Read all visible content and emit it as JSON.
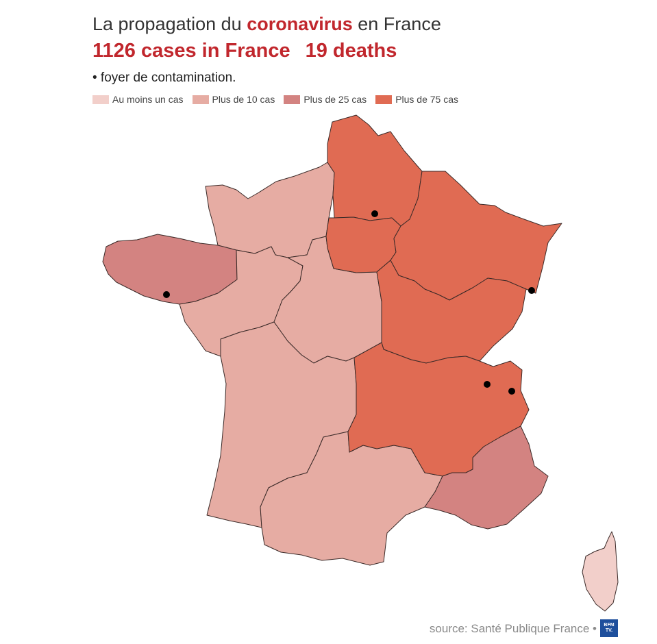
{
  "title": {
    "prefix": "La propagation du ",
    "highlight": "coronavirus",
    "suffix": " en France"
  },
  "headline": {
    "cases": "1126 cases in France",
    "deaths": "19 deaths"
  },
  "foyer_note": "• foyer de contamination.",
  "legend": [
    {
      "label": "Au moins un cas",
      "color": "#f2cfca"
    },
    {
      "label": "Plus de 10 cas",
      "color": "#e6aca3"
    },
    {
      "label": "Plus de 25 cas",
      "color": "#d38381"
    },
    {
      "label": "Plus de 75 cas",
      "color": "#e06b53"
    }
  ],
  "colors": {
    "accent_red": "#c1272d",
    "level_1": "#f2cfca",
    "level_2": "#e6aca3",
    "level_3": "#d38381",
    "level_4": "#e06b53"
  },
  "regions": [
    {
      "id": "normandie",
      "level": "Plus de 10 cas"
    },
    {
      "id": "bretagne",
      "level": "Plus de 25 cas"
    },
    {
      "id": "pays-de-la-loire",
      "level": "Plus de 10 cas"
    },
    {
      "id": "centre-val-de-loire",
      "level": "Plus de 10 cas"
    },
    {
      "id": "nouvelle-aquitaine",
      "level": "Plus de 10 cas"
    },
    {
      "id": "occitanie",
      "level": "Plus de 10 cas"
    },
    {
      "id": "hauts-de-france",
      "level": "Plus de 75 cas"
    },
    {
      "id": "ile-de-france",
      "level": "Plus de 75 cas"
    },
    {
      "id": "grand-est",
      "level": "Plus de 75 cas"
    },
    {
      "id": "bourgogne-franche-comte",
      "level": "Plus de 75 cas"
    },
    {
      "id": "auvergne-rhone-alpes",
      "level": "Plus de 75 cas"
    },
    {
      "id": "provence-alpes-cote-dazur",
      "level": "Plus de 25 cas"
    },
    {
      "id": "corse",
      "level": "Au moins un cas"
    }
  ],
  "foyers": [
    "oise",
    "morbihan",
    "haut-rhin",
    "haute-savoie-1",
    "haute-savoie-2"
  ],
  "source": "source: Santé Publique France •",
  "logo_text": "BFM TV."
}
